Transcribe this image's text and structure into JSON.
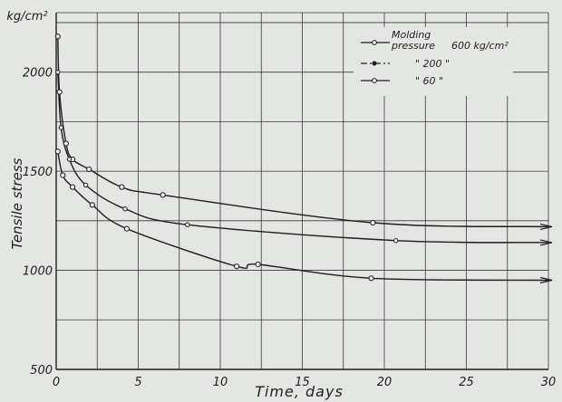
{
  "chart_data": {
    "type": "line",
    "title": "",
    "xlabel": "Time, days",
    "ylabel": "Tensile stress",
    "yunit": "kg/cm²",
    "xlim": [
      0,
      30
    ],
    "ylim": [
      500,
      2300
    ],
    "grid": true,
    "legend_position": "top-right",
    "legend_title": "Molding",
    "legend_title_2": "pressure",
    "x_ticks": [
      "0",
      "5",
      "10",
      "15",
      "20",
      "25",
      "30"
    ],
    "y_ticks": [
      "500",
      "1000",
      "1500",
      "2000"
    ],
    "series": [
      {
        "name": "600 kg/cm²",
        "legend_text": "600 kg/cm²",
        "marker": "open-circle",
        "line": "solid",
        "x": [
          0.1,
          0.2,
          0.6,
          1.0,
          2.0,
          4.0,
          6.5,
          19.3,
          30
        ],
        "y": [
          2180,
          1900,
          1640,
          1560,
          1510,
          1420,
          1380,
          1240,
          1220
        ]
      },
      {
        "name": "200 kg/cm²",
        "legend_text": "\" 200 \"",
        "marker": "filled-dot",
        "line": "dash-dot",
        "x": [
          0.1,
          0.3,
          0.8,
          1.8,
          4.2,
          8.0,
          20.7,
          30
        ],
        "y": [
          2000,
          1720,
          1560,
          1430,
          1310,
          1230,
          1150,
          1140
        ]
      },
      {
        "name": "60 kg/cm²",
        "legend_text": "\" 60 \"",
        "marker": "circle",
        "line": "solid",
        "x": [
          0.1,
          0.4,
          1.0,
          2.2,
          4.3,
          11.0,
          12.3,
          19.2,
          30
        ],
        "y": [
          1600,
          1480,
          1420,
          1330,
          1210,
          1020,
          1030,
          960,
          950
        ]
      }
    ]
  }
}
